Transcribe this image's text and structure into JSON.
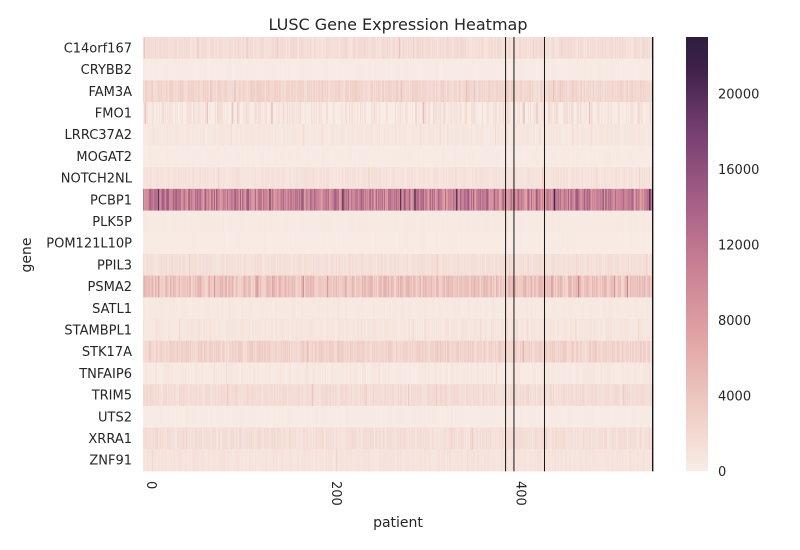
{
  "chart_data": {
    "type": "heatmap",
    "title": "LUSC Gene Expression Heatmap",
    "xlabel": "patient",
    "ylabel": "gene",
    "xlim": [
      0,
      552
    ],
    "x_ticks": [
      0,
      200,
      400
    ],
    "x_tick_labels": [
      "0",
      "200",
      "400"
    ],
    "genes": [
      "C14orf167",
      "CRYBB2",
      "FAM3A",
      "FMO1",
      "LRRC37A2",
      "MOGAT2",
      "NOTCH2NL",
      "PCBP1",
      "PLK5P",
      "POM121L10P",
      "PPIL3",
      "PSMA2",
      "SATL1",
      "STAMBPL1",
      "STK17A",
      "TNFAIP6",
      "TRIM5",
      "UTS2",
      "XRRA1",
      "ZNF91"
    ],
    "row_base_levels": [
      1500,
      200,
      2200,
      500,
      600,
      200,
      1000,
      11000,
      300,
      150,
      1300,
      4000,
      400,
      700,
      2500,
      400,
      1600,
      200,
      1400,
      900
    ],
    "row_variability": [
      800,
      100,
      1000,
      1500,
      400,
      100,
      500,
      4000,
      100,
      80,
      600,
      2000,
      200,
      500,
      1200,
      400,
      700,
      100,
      700,
      400
    ],
    "blank_patient_columns": [
      392,
      401,
      434,
      551
    ],
    "colorbar": {
      "min": 0,
      "max": 23000,
      "ticks": [
        0,
        4000,
        8000,
        12000,
        16000,
        20000
      ],
      "tick_labels": [
        "0",
        "4000",
        "8000",
        "12000",
        "16000",
        "20000"
      ]
    },
    "colormap": [
      "#f8ece6",
      "#efcdc5",
      "#e2a5a5",
      "#c77e93",
      "#a15b84",
      "#6f3c6e",
      "#3d2048",
      "#2d1e3e"
    ]
  }
}
